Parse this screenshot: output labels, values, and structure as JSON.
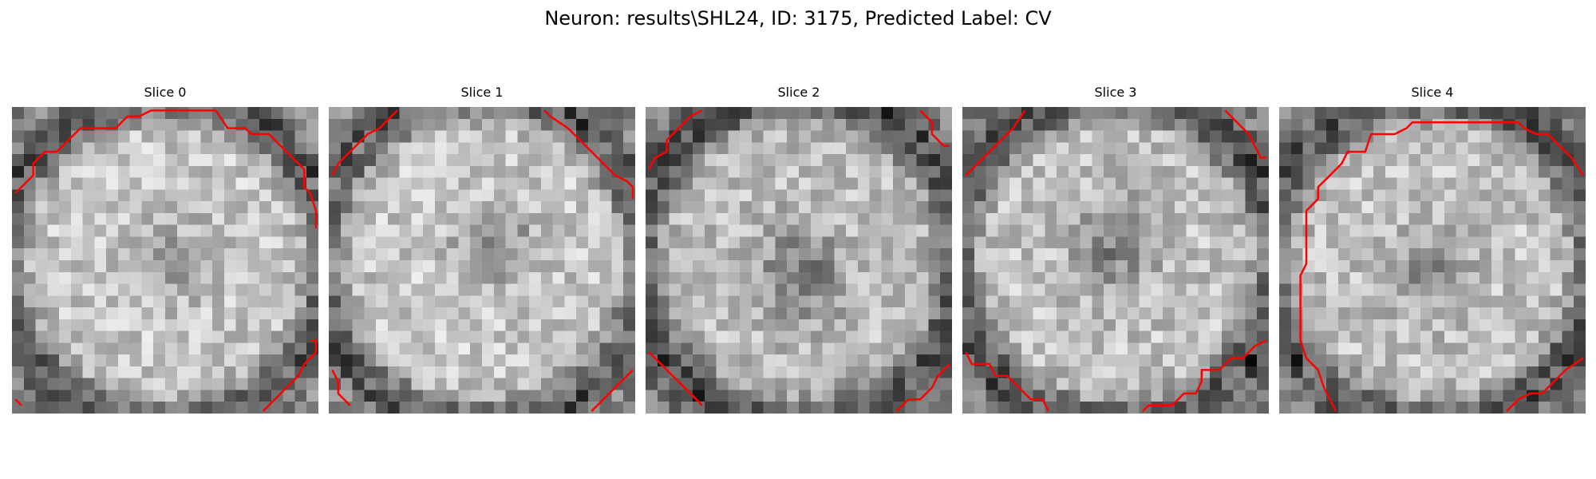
{
  "figure": {
    "title": "Neuron: results\\SHL24, ID: 3175, Predicted Label: CV"
  },
  "overlay": {
    "contour_color": "#ff0000"
  },
  "slices": [
    {
      "label": "Slice 0",
      "seed": 11,
      "base": 0.66,
      "ring": 0.4,
      "holeX": 0.52,
      "holeY": 0.5,
      "holeStr": 0.14,
      "spot": 0.18
    },
    {
      "label": "Slice 1",
      "seed": 23,
      "base": 0.66,
      "ring": 0.38,
      "holeX": 0.55,
      "holeY": 0.45,
      "holeStr": 0.22,
      "spot": 0.2
    },
    {
      "label": "Slice 2",
      "seed": 37,
      "base": 0.62,
      "ring": 0.42,
      "holeX": 0.5,
      "holeY": 0.55,
      "holeStr": 0.28,
      "spot": 0.55
    },
    {
      "label": "Slice 3",
      "seed": 41,
      "base": 0.64,
      "ring": 0.42,
      "holeX": 0.5,
      "holeY": 0.45,
      "holeStr": 0.26,
      "spot": 0.18
    },
    {
      "label": "Slice 4",
      "seed": 53,
      "base": 0.64,
      "ring": 0.4,
      "holeX": 0.48,
      "holeY": 0.55,
      "holeStr": 0.2,
      "spot": 0.18
    }
  ]
}
